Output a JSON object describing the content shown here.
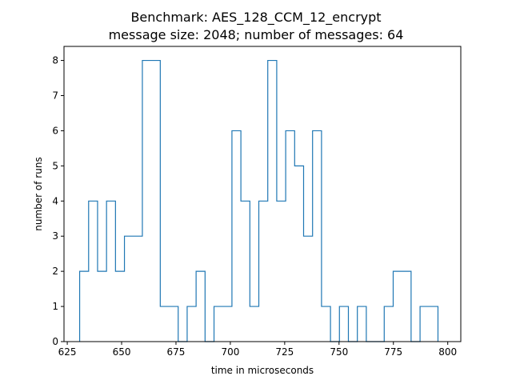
{
  "chart_data": {
    "type": "histogram",
    "title_line1": "Benchmark: AES_128_CCM_12_encrypt",
    "title_line2": "message size: 2048; number of messages: 64",
    "xlabel": "time in microseconds",
    "ylabel": "number of runs",
    "xlim": [
      623.5,
      806.0
    ],
    "ylim": [
      0,
      8.4
    ],
    "xticks": [
      625,
      650,
      675,
      700,
      725,
      750,
      775,
      800
    ],
    "yticks": [
      0,
      1,
      2,
      3,
      4,
      5,
      6,
      7,
      8
    ],
    "line_color": "#1f77b4",
    "bin_start": 630.7,
    "bin_width": 4.12,
    "counts": [
      2,
      4,
      2,
      4,
      2,
      3,
      3,
      8,
      8,
      1,
      1,
      0,
      1,
      2,
      0,
      1,
      1,
      6,
      4,
      1,
      4,
      8,
      4,
      6,
      5,
      3,
      6,
      1,
      0,
      1,
      0,
      1,
      0,
      0,
      1,
      2,
      2,
      0,
      1,
      1
    ]
  }
}
